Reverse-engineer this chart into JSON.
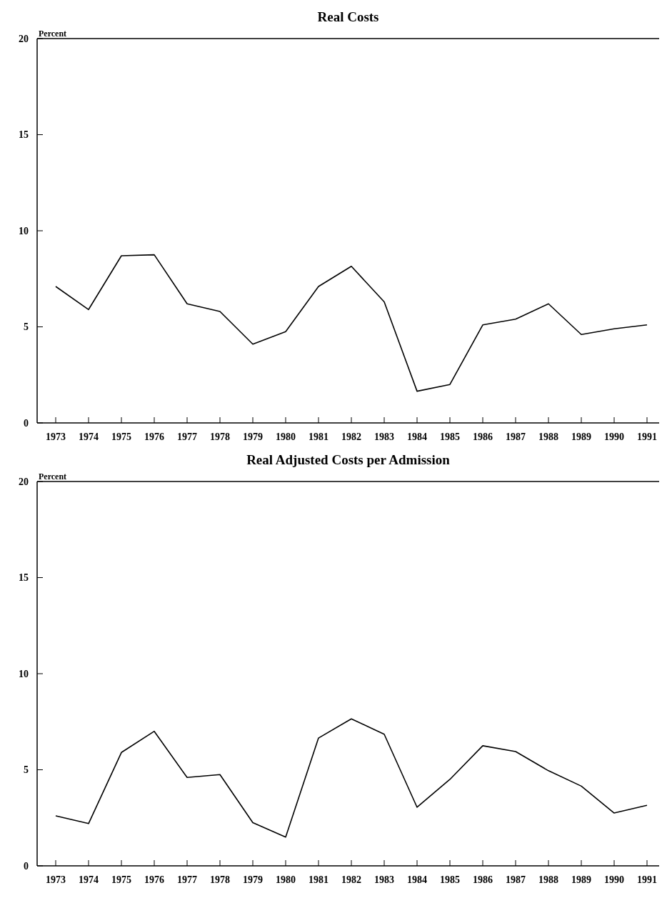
{
  "chart_data": [
    {
      "type": "line",
      "title": "Real Costs",
      "ylabel": "Percent",
      "categories": [
        "1973",
        "1974",
        "1975",
        "1976",
        "1977",
        "1978",
        "1979",
        "1980",
        "1981",
        "1982",
        "1983",
        "1984",
        "1985",
        "1986",
        "1987",
        "1988",
        "1989",
        "1990",
        "1991"
      ],
      "series": [
        {
          "color": "#000000",
          "values": [
            7.1,
            5.9,
            8.7,
            8.75,
            6.2,
            5.8,
            4.1,
            4.75,
            7.1,
            8.15,
            6.3,
            1.65,
            2.0,
            5.1,
            5.4,
            6.2,
            4.6,
            4.9,
            5.1
          ]
        }
      ],
      "ylim": [
        0,
        20
      ],
      "yticks": [
        0,
        5,
        10,
        15,
        20
      ]
    },
    {
      "type": "line",
      "title": "Real Adjusted Costs per Admission",
      "ylabel": "Percent",
      "categories": [
        "1973",
        "1974",
        "1975",
        "1976",
        "1977",
        "1978",
        "1979",
        "1980",
        "1981",
        "1982",
        "1983",
        "1984",
        "1985",
        "1986",
        "1987",
        "1988",
        "1989",
        "1990",
        "1991"
      ],
      "series": [
        {
          "color": "#000000",
          "values": [
            2.6,
            2.2,
            5.9,
            7.0,
            4.6,
            4.75,
            2.25,
            1.5,
            6.65,
            7.65,
            6.85,
            3.05,
            4.5,
            6.25,
            5.95,
            4.95,
            4.15,
            2.75,
            3.15
          ]
        }
      ],
      "ylim": [
        0,
        20
      ],
      "yticks": [
        0,
        5,
        10,
        15,
        20
      ]
    }
  ]
}
